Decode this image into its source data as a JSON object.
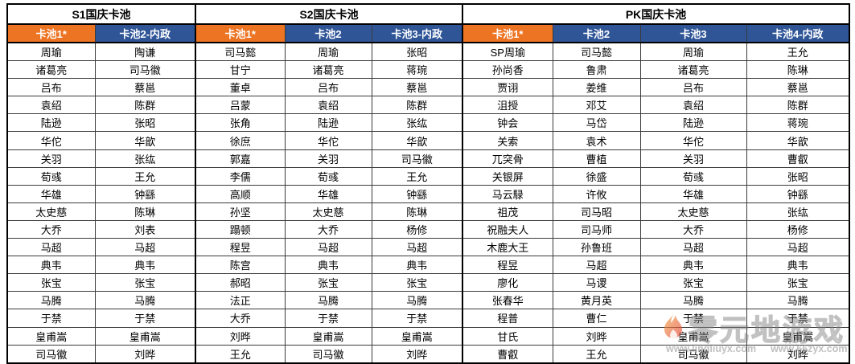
{
  "table": {
    "sections": [
      {
        "title": "S1国庆卡池",
        "columns": [
          {
            "label": "卡池1*",
            "style": "orange",
            "names": [
              "周瑜",
              "诸葛亮",
              "吕布",
              "袁绍",
              "陆逊",
              "华佗",
              "关羽",
              "荀彧",
              "华雄",
              "太史慈",
              "大乔",
              "马超",
              "典韦",
              "张宝",
              "马腾",
              "于禁",
              "皇甫嵩",
              "司马徽"
            ]
          },
          {
            "label": "卡池2-内政",
            "style": "blue",
            "names": [
              "陶谦",
              "司马徽",
              "蔡邕",
              "陈群",
              "张昭",
              "华歆",
              "张纮",
              "王允",
              "钟繇",
              "陈琳",
              "刘表",
              "马超",
              "典韦",
              "张宝",
              "马腾",
              "于禁",
              "皇甫嵩",
              "刘晔"
            ]
          }
        ]
      },
      {
        "title": "S2国庆卡池",
        "columns": [
          {
            "label": "卡池1*",
            "style": "orange",
            "names": [
              "司马懿",
              "甘宁",
              "董卓",
              "吕蒙",
              "张角",
              "徐庶",
              "郭嘉",
              "李儒",
              "高顺",
              "孙坚",
              "蹋顿",
              "程昱",
              "陈宫",
              "郝昭",
              "法正",
              "大乔",
              "刘晔",
              "王允"
            ]
          },
          {
            "label": "卡池2",
            "style": "blue",
            "names": [
              "周瑜",
              "诸葛亮",
              "吕布",
              "袁绍",
              "陆逊",
              "华佗",
              "关羽",
              "荀彧",
              "华雄",
              "太史慈",
              "大乔",
              "马超",
              "典韦",
              "张宝",
              "马腾",
              "于禁",
              "皇甫嵩",
              "司马徽"
            ]
          },
          {
            "label": "卡池3-内政",
            "style": "blue",
            "names": [
              "张昭",
              "蒋琬",
              "蔡邕",
              "陈群",
              "张纮",
              "华歆",
              "司马徽",
              "王允",
              "钟繇",
              "陈琳",
              "杨修",
              "马超",
              "典韦",
              "张宝",
              "马腾",
              "于禁",
              "皇甫嵩",
              "刘晔"
            ]
          }
        ]
      },
      {
        "title": "PK国庆卡池",
        "columns": [
          {
            "label": "卡池1*",
            "style": "orange",
            "names": [
              "SP周瑜",
              "孙尚香",
              "贾诩",
              "沮授",
              "钟会",
              "关索",
              "兀突骨",
              "关银屏",
              "马云騄",
              "祖茂",
              "祝融夫人",
              "木鹿大王",
              "程昱",
              "廖化",
              "张春华",
              "程普",
              "甘氏",
              "曹叡"
            ]
          },
          {
            "label": "卡池2",
            "style": "blue",
            "names": [
              "司马懿",
              "鲁肃",
              "姜维",
              "邓艾",
              "马岱",
              "袁术",
              "曹植",
              "徐盛",
              "许攸",
              "司马昭",
              "司马师",
              "孙鲁班",
              "马超",
              "马谡",
              "黄月英",
              "曹仁",
              "刘晔",
              "王允"
            ]
          },
          {
            "label": "卡池3",
            "style": "blue",
            "names": [
              "周瑜",
              "诸葛亮",
              "吕布",
              "袁绍",
              "陆逊",
              "华佗",
              "关羽",
              "荀彧",
              "华雄",
              "太史慈",
              "大乔",
              "马超",
              "典韦",
              "张宝",
              "马腾",
              "于禁",
              "皇甫嵩",
              "司马徽"
            ]
          },
          {
            "label": "卡池4-内政",
            "style": "blue",
            "names": [
              "王允",
              "陈琳",
              "蔡邕",
              "陈群",
              "蒋琬",
              "华歆",
              "曹叡",
              "张昭",
              "钟繇",
              "张纮",
              "杨修",
              "马超",
              "典韦",
              "张宝",
              "马腾",
              "于禁",
              "皇甫嵩",
              "刘晔"
            ]
          }
        ]
      }
    ]
  },
  "colors": {
    "orange": "#ED7423",
    "blue": "#2F5597",
    "border": "#000000"
  },
  "watermark": {
    "text": "零元地游戏",
    "urls": [
      "www.lingliuyx.com",
      "www.66zyx.com"
    ]
  }
}
